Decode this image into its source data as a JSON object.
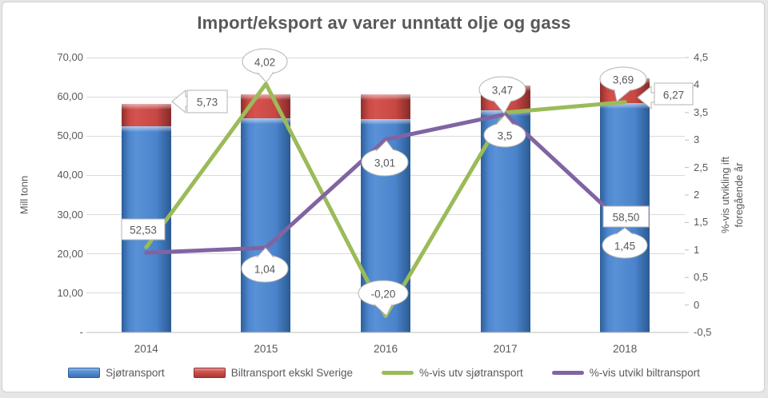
{
  "page": {
    "background_color": "#e6e6e6",
    "panel_color": "#ffffff",
    "text_color": "#595959"
  },
  "chart_data": {
    "type": "combo",
    "title": "Import/eksport av varer unntatt olje og gass",
    "categories": [
      "2014",
      "2015",
      "2016",
      "2017",
      "2018"
    ],
    "left_axis": {
      "title": "Mill tonn",
      "tick_labels": [
        "70,00",
        "60,00",
        "50,00",
        "40,00",
        "30,00",
        "20,00",
        "10,00",
        "-"
      ],
      "tick_values": [
        70,
        60,
        50,
        40,
        30,
        20,
        10,
        0
      ],
      "range": [
        0,
        70
      ]
    },
    "right_axis": {
      "title": "%-vis utvikling ift foregående år",
      "title_lines": [
        "%-vis utvikling ift",
        "foregående år"
      ],
      "tick_labels": [
        "4,5",
        "4",
        "3,5",
        "3",
        "2,5",
        "2",
        "1,5",
        "1",
        "0,5",
        "0",
        "-0,5"
      ],
      "tick_values": [
        4.5,
        4,
        3.5,
        3,
        2.5,
        2,
        1.5,
        1,
        0.5,
        0,
        -0.5
      ],
      "range": [
        -0.5,
        4.5
      ]
    },
    "series": [
      {
        "name": "Sjøtransport",
        "type": "bar",
        "stack": true,
        "axis": "left",
        "color": "#4e87cf",
        "values": [
          52.53,
          54.6,
          54.4,
          56.5,
          58.5
        ]
      },
      {
        "name": "Biltransport ekskl Sverige",
        "type": "bar",
        "stack": true,
        "axis": "left",
        "color": "#cb4a46",
        "values": [
          5.73,
          6.0,
          6.2,
          6.4,
          6.27
        ]
      },
      {
        "name": "%-vis utv sjøtransport",
        "type": "line",
        "axis": "right",
        "color": "#9bbb59",
        "values": [
          1.05,
          4.02,
          -0.2,
          3.5,
          3.69
        ]
      },
      {
        "name": "%-vis utvikl biltransport",
        "type": "line",
        "axis": "right",
        "color": "#8064a2",
        "values": [
          0.95,
          1.04,
          3.01,
          3.47,
          1.45
        ]
      }
    ],
    "annotations": [
      {
        "text": "52,53",
        "shape": "rectangle",
        "series": "Sjøtransport",
        "category": "2014"
      },
      {
        "text": "5,73",
        "shape": "arrow-callout",
        "series": "Biltransport ekskl Sverige",
        "category": "2014"
      },
      {
        "text": "4,02",
        "shape": "oval-callout",
        "series": "%-vis utv sjøtransport",
        "category": "2015"
      },
      {
        "text": "1,04",
        "shape": "oval-callout",
        "series": "%-vis utvikl biltransport",
        "category": "2015"
      },
      {
        "text": "3,01",
        "shape": "oval-callout",
        "series": "%-vis utvikl biltransport",
        "category": "2016"
      },
      {
        "text": "-0,20",
        "shape": "oval-callout",
        "series": "%-vis utv sjøtransport",
        "category": "2016"
      },
      {
        "text": "3,47",
        "shape": "oval-callout",
        "series": "%-vis utvikl biltransport",
        "category": "2017"
      },
      {
        "text": "3,5",
        "shape": "oval-callout",
        "series": "%-vis utv sjøtransport",
        "category": "2017"
      },
      {
        "text": "3,69",
        "shape": "oval-callout",
        "series": "%-vis utv sjøtransport",
        "category": "2018"
      },
      {
        "text": "6,27",
        "shape": "arrow-callout",
        "series": "Biltransport ekskl Sverige",
        "category": "2018"
      },
      {
        "text": "58,50",
        "shape": "rectangle",
        "series": "Sjøtransport",
        "category": "2018"
      },
      {
        "text": "1,45",
        "shape": "oval-callout",
        "series": "%-vis utvikl biltransport",
        "category": "2018"
      }
    ],
    "grid": true,
    "legend_position": "bottom",
    "gridline_color": "#dadada",
    "axisline_color": "#bfbfbf",
    "callout_border_color": "#b3b3b3"
  }
}
